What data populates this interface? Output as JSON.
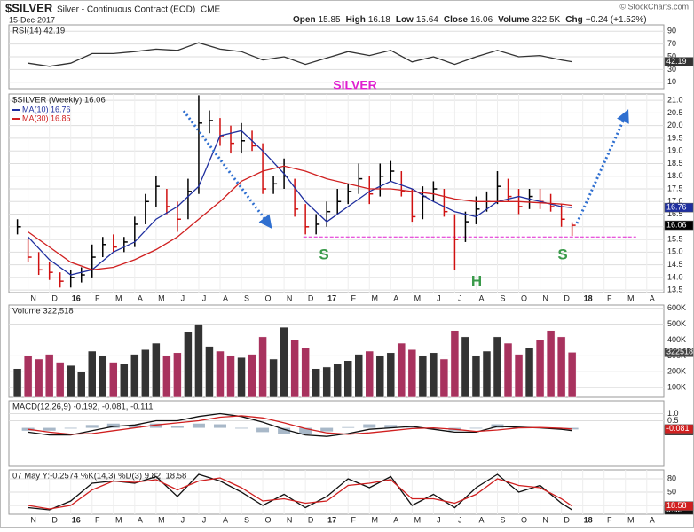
{
  "header": {
    "symbol": "$SILVER",
    "name": "Silver - Continuous Contract (EOD)",
    "exchange": "CME",
    "date": "15-Dec-2017",
    "source": "© StockCharts.com",
    "quote": [
      {
        "label": "Open",
        "value": "15.85"
      },
      {
        "label": "High",
        "value": "16.18"
      },
      {
        "label": "Low",
        "value": "15.64"
      },
      {
        "label": "Close",
        "value": "16.06"
      },
      {
        "label": "Volume",
        "value": "322.5K"
      },
      {
        "label": "Chg",
        "value": "+0.24 (+1.52%)"
      }
    ]
  },
  "chart_data": [
    {
      "type": "line",
      "title": "RSI(14) 42.19",
      "ylim": [
        0,
        100
      ],
      "yticks": [
        90,
        70,
        50,
        30,
        10
      ],
      "grid": true,
      "series": [
        {
          "color": "#333333",
          "value_box": true,
          "x": [
            0,
            1,
            2,
            3,
            4,
            5,
            6,
            7,
            8,
            9,
            10,
            11,
            12,
            13,
            14,
            15,
            16,
            17,
            18,
            19,
            20,
            21,
            22,
            23,
            24,
            25,
            25.5
          ],
          "values": [
            40,
            35,
            40,
            55,
            55,
            58,
            62,
            60,
            72,
            62,
            58,
            45,
            50,
            38,
            48,
            58,
            52,
            60,
            42,
            50,
            38,
            50,
            60,
            50,
            52,
            45,
            42.19
          ]
        }
      ]
    },
    {
      "type": "ohlc",
      "title": "$SILVER (Weekly) 16.06",
      "ylim": [
        13.4,
        21.25
      ],
      "xlim": [
        -0.9,
        29.8
      ],
      "grid": true,
      "color": "#000000",
      "down_color": "#d01010",
      "close_box": true,
      "yticks": [
        {
          "value": 21,
          "label": "21.0"
        },
        20.5,
        {
          "value": 20,
          "label": "20.0"
        },
        19.5,
        {
          "value": 19,
          "label": "19.0"
        },
        18.5,
        {
          "value": 18,
          "label": "18.0"
        },
        17.5,
        {
          "value": 17,
          "label": "17.0"
        },
        16.5,
        {
          "value": 16,
          "label": "16.0"
        },
        15.5,
        {
          "value": 15,
          "label": "15.0"
        },
        14.5,
        {
          "value": 14,
          "label": "14.0"
        },
        13.5
      ],
      "xticks": [
        {
          "value": 0,
          "label": "N"
        },
        {
          "value": 1,
          "label": "D"
        },
        {
          "value": 2,
          "label": "16"
        },
        {
          "value": 3,
          "label": "F"
        },
        {
          "value": 4,
          "label": "M"
        },
        {
          "value": 5,
          "label": "A"
        },
        {
          "value": 6,
          "label": "M"
        },
        {
          "value": 7,
          "label": "J"
        },
        {
          "value": 8,
          "label": "J"
        },
        {
          "value": 9,
          "label": "A"
        },
        {
          "value": 10,
          "label": "S"
        },
        {
          "value": 11,
          "label": "O"
        },
        {
          "value": 12,
          "label": "N"
        },
        {
          "value": 13,
          "label": "D"
        },
        {
          "value": 14,
          "label": "17"
        },
        {
          "value": 15,
          "label": "F"
        },
        {
          "value": 16,
          "label": "M"
        },
        {
          "value": 17,
          "label": "A"
        },
        {
          "value": 18,
          "label": "M"
        },
        {
          "value": 19,
          "label": "J"
        },
        {
          "value": 20,
          "label": "J"
        },
        {
          "value": 21,
          "label": "A"
        },
        {
          "value": 22,
          "label": "S"
        },
        {
          "value": 23,
          "label": "O"
        },
        {
          "value": 24,
          "label": "N"
        },
        {
          "value": 25,
          "label": "D"
        },
        {
          "value": 26,
          "label": "18"
        },
        {
          "value": 27,
          "label": "F"
        },
        {
          "value": 28,
          "label": "M"
        },
        {
          "value": 29,
          "label": "A"
        }
      ],
      "x": [
        -0.5,
        0,
        0.5,
        1,
        1.5,
        2,
        2.5,
        3,
        3.5,
        4,
        4.5,
        5,
        5.5,
        6,
        6.5,
        7,
        7.5,
        8,
        8.5,
        9,
        9.5,
        10,
        10.5,
        11,
        11.5,
        12,
        12.5,
        13,
        13.5,
        14,
        14.5,
        15,
        15.5,
        16,
        16.5,
        17,
        17.5,
        18,
        18.5,
        19,
        19.5,
        20,
        20.5,
        21,
        21.5,
        22,
        22.5,
        23,
        23.5,
        24,
        24.5,
        25,
        25.5
      ],
      "high": [
        16.3,
        15.5,
        15.0,
        14.6,
        14.2,
        14.3,
        14.4,
        15.3,
        15.6,
        15.7,
        15.6,
        16.4,
        17.3,
        18.0,
        17.5,
        17.0,
        17.9,
        21.2,
        20.6,
        20.3,
        20.0,
        20.1,
        19.8,
        19.3,
        18.0,
        18.7,
        17.9,
        16.9,
        16.5,
        17.0,
        17.5,
        17.7,
        18.5,
        18.0,
        18.5,
        18.6,
        18.2,
        17.5,
        17.6,
        17.8,
        17.5,
        16.5,
        16.6,
        17.2,
        17.4,
        18.2,
        17.9,
        17.5,
        17.5,
        17.5,
        17.3,
        16.9,
        16.18
      ],
      "low": [
        15.7,
        14.6,
        14.1,
        13.9,
        13.6,
        13.6,
        13.8,
        14.0,
        14.8,
        15.0,
        15.0,
        15.2,
        16.1,
        16.8,
        16.5,
        15.8,
        16.3,
        17.3,
        19.7,
        19.2,
        18.9,
        18.9,
        19.0,
        17.3,
        17.3,
        17.5,
        16.4,
        15.7,
        15.7,
        16.0,
        16.5,
        16.9,
        17.3,
        16.9,
        17.2,
        17.8,
        17.2,
        16.2,
        16.3,
        17.0,
        16.4,
        14.3,
        15.4,
        16.1,
        16.6,
        16.9,
        17.0,
        16.5,
        16.7,
        16.7,
        16.6,
        16.0,
        15.64
      ],
      "close": [
        16.0,
        14.8,
        14.3,
        14.2,
        13.85,
        14.0,
        14.1,
        14.8,
        15.3,
        15.2,
        15.4,
        16.1,
        17.0,
        17.6,
        16.8,
        16.3,
        17.4,
        20.1,
        20.2,
        19.6,
        19.3,
        19.4,
        19.2,
        17.5,
        17.7,
        18.0,
        16.7,
        16.0,
        16.1,
        16.6,
        17.0,
        17.4,
        17.9,
        17.3,
        18.0,
        18.2,
        17.4,
        16.4,
        17.2,
        17.5,
        16.6,
        15.5,
        16.2,
        16.7,
        17.0,
        17.6,
        17.2,
        16.8,
        17.2,
        17.0,
        16.8,
        16.3,
        16.06
      ],
      "series": [
        {
          "name": "MA(10) 16.76",
          "color": "#1f2f9f",
          "value_box": true,
          "x": [
            0,
            1,
            2,
            3,
            4,
            5,
            6,
            7,
            8,
            9,
            10,
            11,
            12,
            13,
            14,
            15,
            16,
            17,
            18,
            19,
            20,
            21,
            22,
            23,
            24,
            25,
            25.5
          ],
          "values": [
            15.6,
            14.7,
            14.1,
            14.3,
            15.0,
            15.4,
            16.3,
            16.8,
            17.6,
            19.6,
            19.8,
            19.0,
            18.1,
            17.0,
            16.2,
            16.8,
            17.4,
            17.8,
            17.5,
            17.0,
            16.6,
            16.4,
            17.0,
            17.2,
            17.0,
            16.8,
            16.76
          ]
        },
        {
          "name": "MA(30) 16.85",
          "color": "#d02020",
          "x": [
            0,
            1,
            2,
            3,
            4,
            5,
            6,
            7,
            8,
            9,
            10,
            11,
            12,
            13,
            14,
            15,
            16,
            17,
            18,
            19,
            20,
            21,
            22,
            23,
            24,
            25,
            25.5
          ],
          "values": [
            15.8,
            15.2,
            14.6,
            14.3,
            14.4,
            14.7,
            15.1,
            15.6,
            16.3,
            17.0,
            17.8,
            18.2,
            18.4,
            18.2,
            17.9,
            17.7,
            17.5,
            17.5,
            17.4,
            17.3,
            17.1,
            17.0,
            17.0,
            17.0,
            16.95,
            16.9,
            16.85
          ]
        }
      ],
      "neckline": 15.6,
      "neckline_color": "#e020d0",
      "annotations": [
        {
          "text": "SILVER",
          "color": "#e020d0"
        },
        {
          "text": "S",
          "color": "#3a9a4a"
        },
        {
          "text": "H",
          "color": "#3a9a4a"
        },
        {
          "text": "S",
          "color": "#3a9a4a"
        }
      ]
    },
    {
      "type": "bar",
      "title": "Volume 322,518",
      "ylim": [
        40000,
        620000
      ],
      "grid": true,
      "color": "#333333",
      "down_color": "#a8325e",
      "value_box": true,
      "yticks": [
        {
          "value": 600000,
          "label": "600K"
        },
        {
          "value": 500000,
          "label": "500K"
        },
        {
          "value": 400000,
          "label": "400K"
        },
        {
          "value": 300000,
          "label": "300K"
        },
        {
          "value": 200000,
          "label": "200K"
        },
        {
          "value": 100000,
          "label": "100K"
        }
      ],
      "values": [
        220000,
        300000,
        280000,
        310000,
        260000,
        240000,
        200000,
        330000,
        300000,
        260000,
        250000,
        310000,
        340000,
        380000,
        300000,
        320000,
        450000,
        500000,
        360000,
        330000,
        300000,
        290000,
        310000,
        420000,
        280000,
        480000,
        400000,
        350000,
        220000,
        230000,
        250000,
        270000,
        310000,
        330000,
        300000,
        320000,
        380000,
        340000,
        300000,
        320000,
        280000,
        460000,
        420000,
        300000,
        330000,
        420000,
        380000,
        310000,
        350000,
        400000,
        460000,
        420000,
        322518
      ]
    },
    {
      "type": "line",
      "title": "MACD(12,26,9) -0.192, -0.081, -0.111",
      "ylim": [
        -2.7,
        1.9
      ],
      "yticks": [
        {
          "value": 1,
          "label": "1.0"
        },
        0.5
      ],
      "grid": true,
      "series": [
        {
          "color": "#a8b8c8",
          "style": "histogram",
          "x": [
            0,
            1,
            2,
            3,
            4,
            5,
            6,
            7,
            8,
            9,
            10,
            11,
            12,
            13,
            14,
            15,
            16,
            17,
            18,
            19,
            20,
            21,
            22,
            23,
            24,
            25,
            25.5
          ],
          "values": [
            -0.2,
            -0.2,
            -0.05,
            0.2,
            0.3,
            0.2,
            0.3,
            0.15,
            0.3,
            0.25,
            -0.05,
            -0.3,
            -0.45,
            -0.45,
            -0.25,
            0.05,
            0.25,
            0.2,
            0.15,
            -0.1,
            -0.2,
            -0.05,
            0.25,
            0.05,
            -0.02,
            -0.07,
            -0.111
          ]
        },
        {
          "color": "#111111",
          "value_box": true,
          "x": [
            0,
            1,
            2,
            3,
            4,
            5,
            6,
            7,
            8,
            9,
            10,
            11,
            12,
            13,
            14,
            15,
            16,
            17,
            18,
            19,
            20,
            21,
            22,
            23,
            24,
            25,
            25.5
          ],
          "values": [
            -0.3,
            -0.5,
            -0.5,
            -0.2,
            0.1,
            0.2,
            0.5,
            0.5,
            0.8,
            1.0,
            0.8,
            0.4,
            -0.1,
            -0.5,
            -0.6,
            -0.4,
            -0.1,
            0.0,
            0.1,
            -0.1,
            -0.3,
            -0.3,
            0.1,
            0.05,
            0.0,
            -0.1,
            -0.192
          ]
        },
        {
          "color": "#d02020",
          "value_box": true,
          "x": [
            0,
            1,
            2,
            3,
            4,
            5,
            6,
            7,
            8,
            9,
            10,
            11,
            12,
            13,
            14,
            15,
            16,
            17,
            18,
            19,
            20,
            21,
            22,
            23,
            24,
            25,
            25.5
          ],
          "values": [
            -0.1,
            -0.3,
            -0.45,
            -0.4,
            -0.2,
            0.0,
            0.2,
            0.35,
            0.5,
            0.75,
            0.85,
            0.7,
            0.35,
            -0.05,
            -0.35,
            -0.45,
            -0.35,
            -0.2,
            -0.05,
            0.0,
            -0.1,
            -0.25,
            -0.15,
            0.0,
            0.02,
            -0.03,
            -0.081
          ]
        }
      ]
    },
    {
      "type": "line",
      "title": "07 May Y:-0.2574 %K(14,3) %D(3) 9.82, 18.58",
      "ylim": [
        0,
        100
      ],
      "yticks": [
        80,
        50,
        20
      ],
      "grid": true,
      "xticks": [
        {
          "value": 0,
          "label": "N"
        },
        {
          "value": 1,
          "label": "D"
        },
        {
          "value": 2,
          "label": "16"
        },
        {
          "value": 3,
          "label": "F"
        },
        {
          "value": 4,
          "label": "M"
        },
        {
          "value": 5,
          "label": "A"
        },
        {
          "value": 6,
          "label": "M"
        },
        {
          "value": 7,
          "label": "J"
        },
        {
          "value": 8,
          "label": "J"
        },
        {
          "value": 9,
          "label": "A"
        },
        {
          "value": 10,
          "label": "S"
        },
        {
          "value": 11,
          "label": "O"
        },
        {
          "value": 12,
          "label": "N"
        },
        {
          "value": 13,
          "label": "D"
        },
        {
          "value": 14,
          "label": "17"
        },
        {
          "value": 15,
          "label": "F"
        },
        {
          "value": 16,
          "label": "M"
        },
        {
          "value": 17,
          "label": "A"
        },
        {
          "value": 18,
          "label": "M"
        },
        {
          "value": 19,
          "label": "J"
        },
        {
          "value": 20,
          "label": "J"
        },
        {
          "value": 21,
          "label": "A"
        },
        {
          "value": 22,
          "label": "S"
        },
        {
          "value": 23,
          "label": "O"
        },
        {
          "value": 24,
          "label": "N"
        },
        {
          "value": 25,
          "label": "D"
        },
        {
          "value": 26,
          "label": "18"
        },
        {
          "value": 27,
          "label": "F"
        },
        {
          "value": 28,
          "label": "M"
        },
        {
          "value": 29,
          "label": "A"
        }
      ],
      "series": [
        {
          "color": "#111111",
          "value_box": true,
          "x": [
            0,
            1,
            2,
            3,
            4,
            5,
            6,
            7,
            8,
            9,
            10,
            11,
            12,
            13,
            14,
            15,
            16,
            17,
            18,
            19,
            20,
            21,
            22,
            23,
            24,
            25,
            25.5
          ],
          "values": [
            15,
            10,
            30,
            70,
            75,
            70,
            85,
            40,
            90,
            75,
            50,
            20,
            45,
            15,
            40,
            80,
            60,
            85,
            20,
            45,
            15,
            60,
            90,
            50,
            65,
            25,
            9.82
          ]
        },
        {
          "color": "#d02020",
          "value_box": true,
          "x": [
            0,
            1,
            2,
            3,
            4,
            5,
            6,
            7,
            8,
            9,
            10,
            11,
            12,
            13,
            14,
            15,
            16,
            17,
            18,
            19,
            20,
            21,
            22,
            23,
            24,
            25,
            25.5
          ],
          "values": [
            20,
            12,
            20,
            55,
            75,
            72,
            78,
            55,
            75,
            82,
            60,
            30,
            35,
            25,
            30,
            65,
            70,
            78,
            35,
            35,
            25,
            45,
            80,
            65,
            60,
            35,
            18.58
          ]
        }
      ]
    }
  ]
}
